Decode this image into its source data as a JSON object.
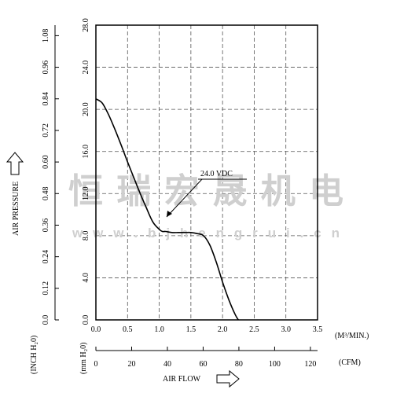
{
  "chart_data": {
    "type": "line",
    "x_unit": "(M³/MIN.)",
    "x_ticks": [
      "0.0",
      "0.5",
      "1.0",
      "1.5",
      "2.0",
      "2.5",
      "3.0",
      "3.5"
    ],
    "xlim": [
      0,
      3.5
    ],
    "x2_unit": "(CFM)",
    "x2_ticks": [
      "0",
      "20",
      "40",
      "60",
      "80",
      "100",
      "120"
    ],
    "x2_title": "AIR FLOW",
    "y_title": "AIR PRESSURE",
    "y_unit_mm": "(mm H₂0)",
    "y_ticks_mm": [
      "0.0",
      "4.0",
      "8.0",
      "12.0",
      "16.0",
      "20.0",
      "24.0",
      "28.0"
    ],
    "ylim": [
      0,
      28
    ],
    "y_unit_inch": "(INCH H₂0)",
    "y_ticks_inch": [
      "0.0",
      "0.12",
      "0.24",
      "0.36",
      "0.48",
      "0.60",
      "0.72",
      "0.84",
      "0.96",
      "1.08"
    ],
    "grid": "dashed",
    "series": [
      {
        "name": "24.0 VDC",
        "x": [
          0.0,
          0.1,
          0.2,
          0.3,
          0.4,
          0.5,
          0.6,
          0.7,
          0.8,
          0.9,
          1.0,
          1.05,
          1.1,
          1.2,
          1.3,
          1.4,
          1.5,
          1.6,
          1.7,
          1.8,
          1.9,
          2.0,
          2.1,
          2.2,
          2.25
        ],
        "y": [
          21.0,
          20.6,
          19.5,
          18.1,
          16.6,
          15.0,
          13.5,
          12.0,
          10.6,
          9.3,
          8.6,
          8.4,
          8.4,
          8.3,
          8.3,
          8.3,
          8.3,
          8.2,
          8.0,
          7.1,
          5.5,
          3.6,
          1.9,
          0.5,
          0.0
        ]
      }
    ],
    "annotation": "24.0 VDC"
  },
  "watermark": {
    "cn": "恒瑞宏晟机电",
    "url": "w w w . b j h e n g r u i . c n"
  }
}
